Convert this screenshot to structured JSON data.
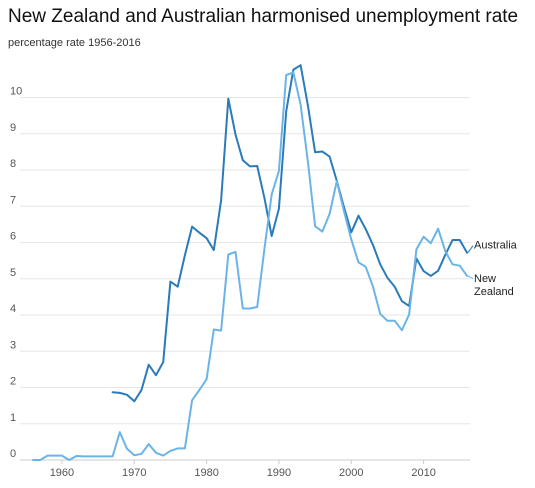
{
  "chart_data": {
    "type": "line",
    "title": "New Zealand and Australian harmonised unemployment rate",
    "subtitle": "percentage rate 1956-2016",
    "xlabel": "",
    "ylabel": "",
    "xlim": [
      1956,
      2016
    ],
    "ylim": [
      0,
      11
    ],
    "grid": true,
    "legend": "inline-right",
    "x_ticks": [
      1960,
      1970,
      1980,
      1990,
      2000,
      2010
    ],
    "y_ticks": [
      0,
      1,
      2,
      3,
      4,
      5,
      6,
      7,
      8,
      9,
      10
    ],
    "series": [
      {
        "name": "Australia",
        "color": "#2b7bb9",
        "label_lines": [
          "Australia"
        ],
        "x": [
          1967,
          1968,
          1969,
          1970,
          1971,
          1972,
          1973,
          1974,
          1975,
          1976,
          1977,
          1978,
          1979,
          1980,
          1981,
          1982,
          1983,
          1984,
          1985,
          1986,
          1987,
          1988,
          1989,
          1990,
          1991,
          1992,
          1993,
          1994,
          1995,
          1996,
          1997,
          1998,
          1999,
          2000,
          2001,
          2002,
          2003,
          2004,
          2005,
          2006,
          2007,
          2008,
          2009,
          2010,
          2011,
          2012,
          2013,
          2014,
          2015,
          2016
        ],
        "values": [
          1.87,
          1.85,
          1.8,
          1.62,
          1.93,
          2.63,
          2.34,
          2.7,
          4.92,
          4.78,
          5.65,
          6.44,
          6.27,
          6.12,
          5.79,
          7.16,
          9.97,
          8.98,
          8.27,
          8.1,
          8.11,
          7.22,
          6.18,
          6.93,
          9.62,
          10.77,
          10.89,
          9.78,
          8.49,
          8.51,
          8.37,
          7.7,
          6.97,
          6.28,
          6.74,
          6.37,
          5.93,
          5.4,
          5.03,
          4.78,
          4.38,
          4.25,
          5.56,
          5.21,
          5.08,
          5.22,
          5.66,
          6.07,
          6.07,
          5.72
        ]
      },
      {
        "name": "New Zealand",
        "color": "#6ab4e8",
        "label_lines": [
          "New",
          "Zealand"
        ],
        "x": [
          1956,
          1957,
          1958,
          1959,
          1960,
          1961,
          1962,
          1963,
          1964,
          1965,
          1966,
          1967,
          1968,
          1969,
          1970,
          1971,
          1972,
          1973,
          1974,
          1975,
          1976,
          1977,
          1978,
          1979,
          1980,
          1981,
          1982,
          1983,
          1984,
          1985,
          1986,
          1987,
          1988,
          1989,
          1990,
          1991,
          1992,
          1993,
          1994,
          1995,
          1996,
          1997,
          1998,
          1999,
          2000,
          2001,
          2002,
          2003,
          2004,
          2005,
          2006,
          2007,
          2008,
          2009,
          2010,
          2011,
          2012,
          2013,
          2014,
          2015,
          2016
        ],
        "values": [
          0.0,
          0.0,
          0.12,
          0.12,
          0.12,
          0.0,
          0.11,
          0.1,
          0.1,
          0.1,
          0.1,
          0.1,
          0.77,
          0.31,
          0.13,
          0.17,
          0.44,
          0.2,
          0.12,
          0.25,
          0.32,
          0.32,
          1.65,
          1.93,
          2.23,
          3.6,
          3.57,
          5.67,
          5.74,
          4.18,
          4.18,
          4.22,
          5.84,
          7.33,
          7.97,
          10.62,
          10.69,
          9.8,
          8.23,
          6.45,
          6.3,
          6.79,
          7.69,
          6.86,
          6.08,
          5.45,
          5.33,
          4.78,
          4.03,
          3.84,
          3.84,
          3.58,
          4.01,
          5.81,
          6.16,
          5.98,
          6.38,
          5.76,
          5.4,
          5.36,
          5.08
        ]
      }
    ]
  }
}
